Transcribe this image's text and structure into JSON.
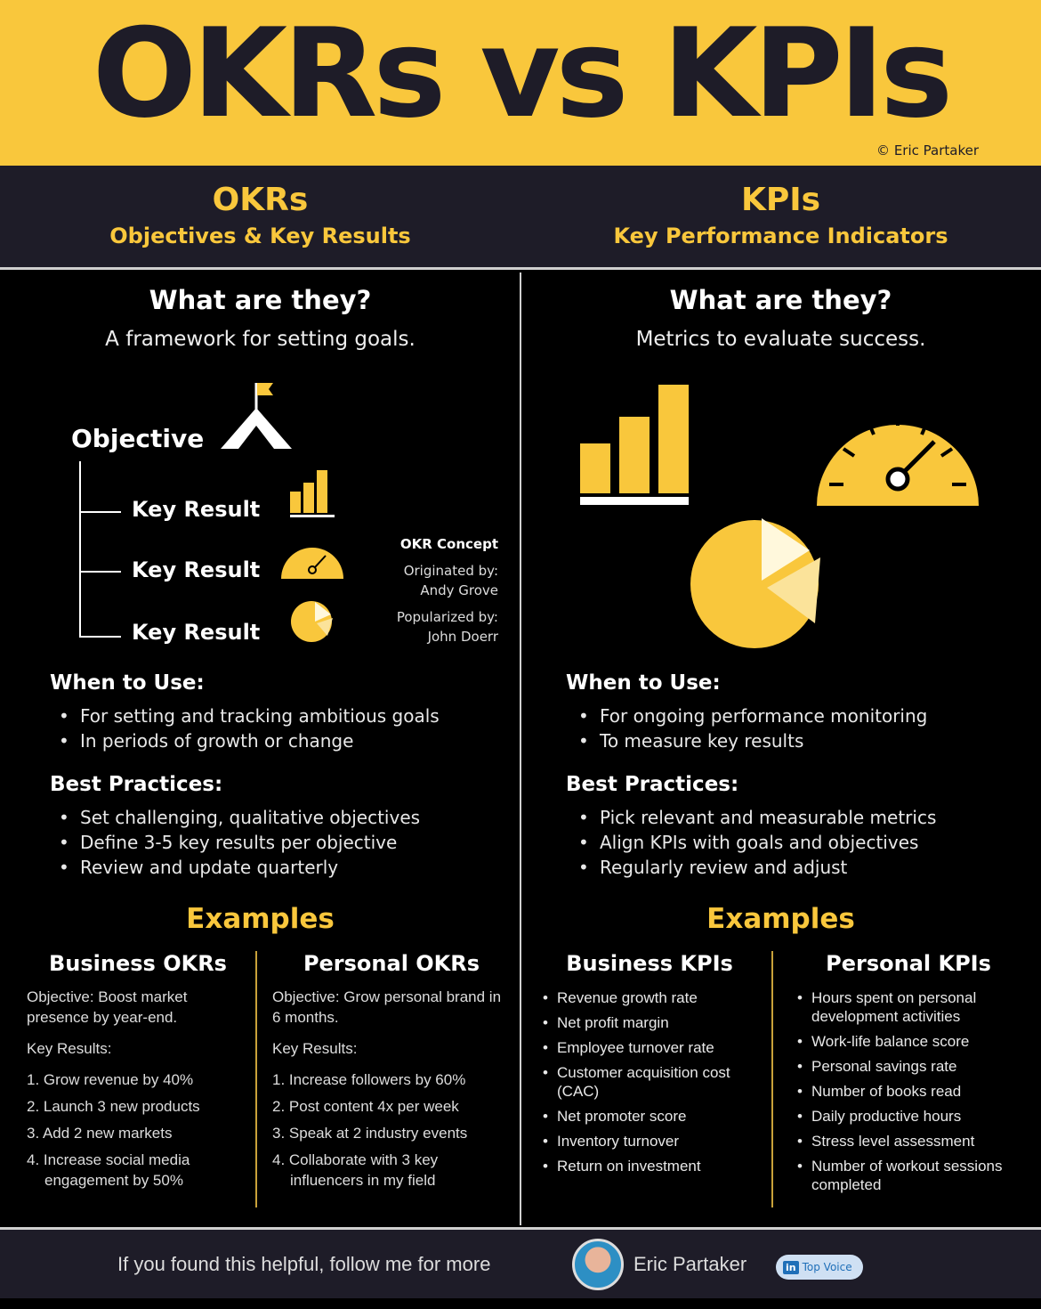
{
  "header": {
    "title": "OKRs vs KPIs",
    "copyright": "© Eric Partaker"
  },
  "okr": {
    "title": "OKRs",
    "subtitle": "Objectives & Key Results",
    "question": "What are they?",
    "answer": "A framework for setting goals.",
    "diagram": {
      "objective": "Objective",
      "key_results": [
        "Key Result",
        "Key Result",
        "Key Result"
      ],
      "concept_title": "OKR Concept",
      "originated_label": "Originated by:",
      "originated_name": "Andy Grove",
      "popularized_label": "Popularized by:",
      "popularized_name": "John Doerr"
    },
    "when_heading": "When to Use:",
    "when": [
      "For setting and tracking ambitious goals",
      "In periods of growth or change"
    ],
    "best_heading": "Best Practices:",
    "best": [
      "Set challenging, qualitative objectives",
      "Define 3-5 key results per objective",
      "Review and update quarterly"
    ],
    "examples_heading": "Examples",
    "business": {
      "title": "Business OKRs",
      "objective": "Objective: Boost market presence by year-end.",
      "kr_label": "Key Results:",
      "items": [
        "1. Grow revenue by 40%",
        "2. Launch 3 new products",
        "3. Add 2 new markets",
        "4. Increase social media engagement by 50%"
      ]
    },
    "personal": {
      "title": "Personal OKRs",
      "objective": "Objective: Grow personal brand in 6 months.",
      "kr_label": "Key Results:",
      "items": [
        "1. Increase followers by 60%",
        "2. Post content 4x per week",
        "3. Speak at 2 industry events",
        "4. Collaborate with 3 key influencers in my field"
      ]
    }
  },
  "kpi": {
    "title": "KPIs",
    "subtitle": "Key Performance Indicators",
    "question": "What are they?",
    "answer": "Metrics to evaluate success.",
    "when_heading": "When to Use:",
    "when": [
      "For ongoing performance monitoring",
      "To measure key results"
    ],
    "best_heading": "Best Practices:",
    "best": [
      "Pick relevant and measurable metrics",
      "Align KPIs with goals and objectives",
      "Regularly review and adjust"
    ],
    "examples_heading": "Examples",
    "business": {
      "title": "Business KPIs",
      "items": [
        "Revenue growth rate",
        "Net profit margin",
        "Employee turnover rate",
        "Customer acquisition cost (CAC)",
        "Net promoter score",
        "Inventory turnover",
        "Return on investment"
      ]
    },
    "personal": {
      "title": "Personal KPIs",
      "items": [
        "Hours spent on personal development activities",
        "Work-life balance score",
        "Personal savings rate",
        "Number of books read",
        "Daily productive hours",
        "Stress level assessment",
        "Number of workout sessions completed"
      ]
    }
  },
  "footer": {
    "cta": "If you found this helpful, follow me for more",
    "name": "Eric Partaker",
    "badge": "Top Voice",
    "badge_icon": "linkedin-icon"
  },
  "colors": {
    "yellow": "#f9c73c",
    "navy": "#1e1c28",
    "background": "#000000"
  }
}
